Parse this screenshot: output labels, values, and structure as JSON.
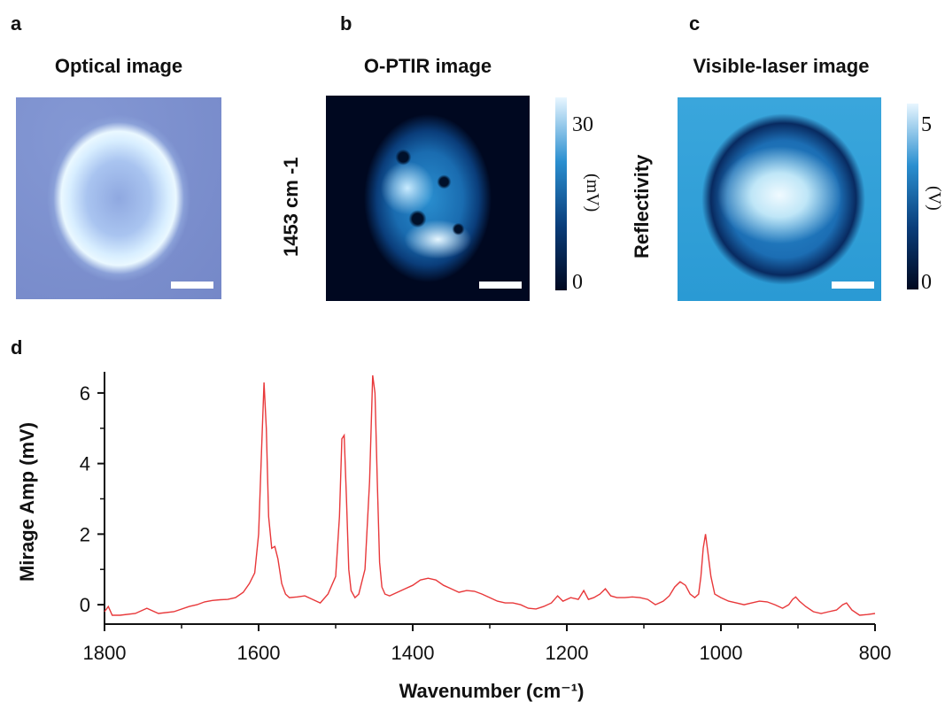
{
  "panels": {
    "a": {
      "label": "a",
      "title": "Optical image"
    },
    "b": {
      "label": "b",
      "title": "O-PTIR image",
      "side_label": "1453 cm -1",
      "colorbar": {
        "max": "30",
        "min": "0",
        "unit": "(mV)",
        "colors": [
          "#000820",
          "#0a3d7a",
          "#2a8fd0",
          "#e8f6ff"
        ]
      }
    },
    "c": {
      "label": "c",
      "title": "Visible-laser image",
      "side_label": "Reflectivity",
      "colorbar": {
        "max": "5",
        "min": "0",
        "unit": "(V)",
        "colors": [
          "#000820",
          "#0a3d7a",
          "#2a8fd0",
          "#e8f6ff"
        ]
      }
    },
    "d": {
      "label": "d"
    }
  },
  "chart_data": {
    "type": "line",
    "xlabel": "Wavenumber (cm⁻¹)",
    "ylabel": "Mirage Amp (mV)",
    "xlim": [
      1800,
      800
    ],
    "ylim": [
      -0.55,
      6.6
    ],
    "x_ticks": [
      1800,
      1600,
      1400,
      1200,
      1000,
      800
    ],
    "y_ticks": [
      0,
      2,
      4,
      6
    ],
    "line_color": "#e8383a",
    "series": [
      {
        "x": [
          1800,
          1795,
          1790,
          1780,
          1760,
          1745,
          1730,
          1710,
          1690,
          1680,
          1670,
          1660,
          1650,
          1640,
          1630,
          1620,
          1612,
          1605,
          1600,
          1596,
          1593,
          1590,
          1587,
          1583,
          1579,
          1575,
          1570,
          1565,
          1560,
          1550,
          1540,
          1530,
          1520,
          1510,
          1500,
          1495,
          1492,
          1489,
          1486,
          1483,
          1480,
          1475,
          1470,
          1462,
          1456,
          1452,
          1449,
          1446,
          1443,
          1440,
          1436,
          1430,
          1420,
          1410,
          1400,
          1390,
          1380,
          1370,
          1360,
          1350,
          1340,
          1330,
          1320,
          1310,
          1300,
          1290,
          1280,
          1270,
          1260,
          1250,
          1240,
          1230,
          1220,
          1212,
          1205,
          1195,
          1185,
          1178,
          1172,
          1165,
          1157,
          1150,
          1143,
          1135,
          1125,
          1115,
          1105,
          1095,
          1085,
          1075,
          1067,
          1060,
          1053,
          1046,
          1040,
          1034,
          1029,
          1026,
          1023,
          1020,
          1017,
          1013,
          1008,
          1000,
          990,
          980,
          970,
          960,
          950,
          940,
          930,
          920,
          912,
          907,
          903,
          898,
          890,
          880,
          870,
          860,
          850,
          842,
          837,
          830,
          820,
          810,
          800
        ],
        "y": [
          -0.2,
          -0.05,
          -0.3,
          -0.3,
          -0.25,
          -0.1,
          -0.25,
          -0.2,
          -0.05,
          0.0,
          0.08,
          0.12,
          0.14,
          0.15,
          0.2,
          0.35,
          0.6,
          0.9,
          2.0,
          4.5,
          6.3,
          5.0,
          2.5,
          1.6,
          1.65,
          1.3,
          0.6,
          0.3,
          0.2,
          0.22,
          0.25,
          0.15,
          0.05,
          0.3,
          0.8,
          2.5,
          4.7,
          4.8,
          3.0,
          1.0,
          0.4,
          0.2,
          0.3,
          1.0,
          3.5,
          6.5,
          6.0,
          3.5,
          1.2,
          0.5,
          0.3,
          0.25,
          0.35,
          0.45,
          0.55,
          0.7,
          0.75,
          0.7,
          0.55,
          0.45,
          0.35,
          0.4,
          0.38,
          0.3,
          0.2,
          0.1,
          0.05,
          0.05,
          0.0,
          -0.1,
          -0.12,
          -0.05,
          0.05,
          0.25,
          0.1,
          0.2,
          0.15,
          0.4,
          0.15,
          0.2,
          0.3,
          0.45,
          0.25,
          0.2,
          0.2,
          0.22,
          0.2,
          0.15,
          0.0,
          0.1,
          0.25,
          0.5,
          0.65,
          0.55,
          0.3,
          0.2,
          0.3,
          0.8,
          1.6,
          2.0,
          1.5,
          0.8,
          0.3,
          0.2,
          0.1,
          0.05,
          0.0,
          0.05,
          0.1,
          0.08,
          0.0,
          -0.1,
          0.0,
          0.15,
          0.22,
          0.1,
          -0.05,
          -0.2,
          -0.25,
          -0.2,
          -0.15,
          0.0,
          0.05,
          -0.15,
          -0.3,
          -0.28,
          -0.25
        ]
      }
    ]
  }
}
